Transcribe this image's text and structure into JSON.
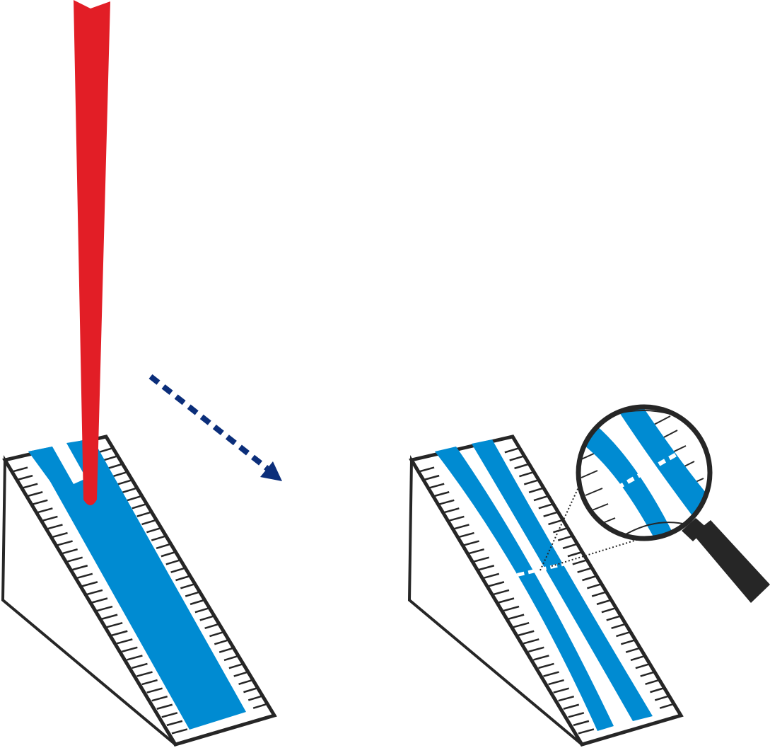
{
  "figure": {
    "left_panel": {
      "name": "wedge-with-laser-line"
    },
    "right_panel": {
      "name": "wedge-with-split-lines-and-magnifier"
    }
  },
  "colors": {
    "background": "#ffffff",
    "laser": "#e21e26",
    "stripe": "#008bd2",
    "outline": "#262626",
    "arrow": "#0b2e7a",
    "cut_mark": "#ffffff"
  },
  "icons": {
    "laser": "laser-beam-icon",
    "arrow": "dashed-arrow-icon",
    "magnifier": "magnifying-glass-icon"
  }
}
